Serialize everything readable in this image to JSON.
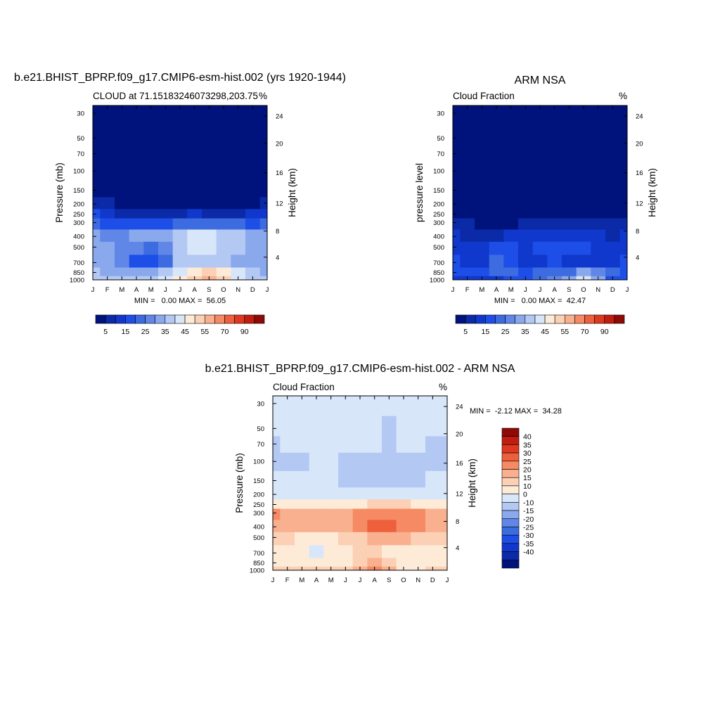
{
  "chart_data": [
    {
      "type": "heatmap",
      "title": "b.e21.BHIST_BPRP.f09_g17.CMIP6-esm-hist.002 (yrs 1920-1944)",
      "subtitle_left": "CLOUD at 71.15183246073298,203.75",
      "subtitle_right": "%",
      "ylabel": "Pressure (mb)",
      "ylabel_right": "Height (km)",
      "x_ticks": [
        "J",
        "F",
        "M",
        "A",
        "M",
        "J",
        "J",
        "A",
        "S",
        "O",
        "N",
        "D",
        "J"
      ],
      "y_ticks": [
        "30",
        "50",
        "70",
        "100",
        "150",
        "200",
        "250",
        "300",
        "400",
        "500",
        "700",
        "850",
        "1000"
      ],
      "y_ticks_right": [
        "24",
        "20",
        "16",
        "12",
        "8",
        "4"
      ],
      "stats": "MIN =   0.00 MAX =  56.05",
      "min": 0.0,
      "max": 56.05,
      "colorbar": {
        "orientation": "horizontal",
        "levels": [
          5,
          10,
          15,
          20,
          25,
          30,
          35,
          40,
          45,
          50,
          55,
          60,
          70,
          80,
          90
        ],
        "labels": [
          "5",
          "15",
          "25",
          "35",
          "45",
          "55",
          "70",
          "90"
        ],
        "colors": [
          "#00137d",
          "#0a2aa8",
          "#1038cc",
          "#1d4ee8",
          "#3c6ce0",
          "#6087e8",
          "#8aa8ec",
          "#b4c8f4",
          "#d8e6fa",
          "#fdebd8",
          "#fcd0b4",
          "#f9b08f",
          "#f58a64",
          "#ee5f3c",
          "#df3820",
          "#c01c10",
          "#8f0a06"
        ]
      },
      "z_grid": {
        "x": [
          "J",
          "F",
          "M",
          "A",
          "M",
          "J",
          "J",
          "A",
          "S",
          "O",
          "N",
          "D",
          "J"
        ],
        "y": [
          30,
          50,
          70,
          100,
          150,
          200,
          250,
          300,
          400,
          500,
          700,
          850,
          1000
        ],
        "z": [
          [
            1,
            1,
            1,
            1,
            1,
            1,
            1,
            1,
            1,
            1,
            1,
            1,
            1
          ],
          [
            1,
            1,
            1,
            1,
            1,
            1,
            1,
            1,
            1,
            1,
            1,
            1,
            1
          ],
          [
            1,
            1,
            1,
            1,
            1,
            1,
            1,
            1,
            1,
            1,
            1,
            1,
            1
          ],
          [
            1,
            1,
            1,
            1,
            1,
            1,
            1,
            1,
            1,
            1,
            1,
            1,
            1
          ],
          [
            2,
            2,
            2,
            2,
            2,
            2,
            2,
            2,
            2,
            2,
            2,
            2,
            2
          ],
          [
            8,
            5,
            3,
            2,
            2,
            3,
            4,
            4,
            3,
            3,
            3,
            4,
            8
          ],
          [
            15,
            12,
            9,
            7,
            6,
            7,
            9,
            10,
            9,
            9,
            9,
            10,
            14
          ],
          [
            20,
            18,
            16,
            15,
            15,
            17,
            20,
            22,
            22,
            21,
            20,
            19,
            21
          ],
          [
            30,
            27,
            27,
            30,
            32,
            34,
            38,
            40,
            40,
            38,
            36,
            34,
            31
          ],
          [
            32,
            30,
            28,
            26,
            24,
            28,
            38,
            40,
            40,
            38,
            36,
            32,
            30
          ],
          [
            32,
            30,
            26,
            18,
            16,
            22,
            36,
            38,
            38,
            36,
            34,
            32,
            30
          ],
          [
            35,
            34,
            32,
            30,
            32,
            36,
            42,
            48,
            50,
            45,
            40,
            36,
            34
          ],
          [
            36,
            36,
            36,
            36,
            36,
            40,
            48,
            52,
            56,
            50,
            42,
            38,
            36
          ]
        ]
      }
    },
    {
      "type": "heatmap",
      "title": "ARM NSA",
      "subtitle_left": "Cloud Fraction",
      "subtitle_right": "%",
      "ylabel": "pressure level",
      "ylabel_right": "Height (km)",
      "x_ticks": [
        "J",
        "F",
        "M",
        "A",
        "M",
        "J",
        "J",
        "A",
        "S",
        "O",
        "N",
        "D",
        "J"
      ],
      "y_ticks": [
        "30",
        "50",
        "70",
        "100",
        "150",
        "200",
        "250",
        "300",
        "400",
        "500",
        "700",
        "850",
        "1000"
      ],
      "y_ticks_right": [
        "24",
        "20",
        "16",
        "12",
        "8",
        "4"
      ],
      "stats": "MIN =   0.00 MAX =  42.47",
      "min": 0.0,
      "max": 42.47,
      "colorbar": {
        "orientation": "horizontal",
        "levels": [
          5,
          10,
          15,
          20,
          25,
          30,
          35,
          40,
          45,
          50,
          55,
          60,
          70,
          80,
          90
        ],
        "labels": [
          "5",
          "15",
          "25",
          "35",
          "45",
          "55",
          "70",
          "90"
        ],
        "colors": [
          "#00137d",
          "#0a2aa8",
          "#1038cc",
          "#1d4ee8",
          "#3c6ce0",
          "#6087e8",
          "#8aa8ec",
          "#b4c8f4",
          "#d8e6fa",
          "#fdebd8",
          "#fcd0b4",
          "#f9b08f",
          "#f58a64",
          "#ee5f3c",
          "#df3820",
          "#c01c10",
          "#8f0a06"
        ]
      },
      "z_grid": {
        "x": [
          "J",
          "F",
          "M",
          "A",
          "M",
          "J",
          "J",
          "A",
          "S",
          "O",
          "N",
          "D",
          "J"
        ],
        "y": [
          30,
          50,
          70,
          100,
          150,
          200,
          250,
          300,
          400,
          500,
          700,
          850,
          1000
        ],
        "z": [
          [
            1,
            1,
            1,
            1,
            1,
            1,
            1,
            1,
            1,
            1,
            1,
            1,
            1
          ],
          [
            1,
            1,
            1,
            1,
            1,
            1,
            1,
            1,
            1,
            1,
            1,
            1,
            1
          ],
          [
            1,
            1,
            1,
            1,
            1,
            1,
            1,
            1,
            1,
            1,
            1,
            1,
            1
          ],
          [
            1,
            1,
            1,
            1,
            1,
            1,
            1,
            1,
            1,
            1,
            1,
            1,
            1
          ],
          [
            1,
            1,
            1,
            1,
            1,
            1,
            1,
            1,
            1,
            1,
            1,
            1,
            1
          ],
          [
            1,
            1,
            1,
            1,
            1,
            1,
            1,
            1,
            1,
            1,
            1,
            1,
            1
          ],
          [
            2,
            2,
            2,
            2,
            2,
            2,
            2,
            2,
            2,
            2,
            2,
            2,
            2
          ],
          [
            6,
            5,
            4,
            4,
            4,
            5,
            6,
            7,
            6,
            5,
            5,
            5,
            6
          ],
          [
            10,
            9,
            8,
            9,
            10,
            10,
            11,
            12,
            11,
            10,
            10,
            9,
            10
          ],
          [
            14,
            12,
            13,
            18,
            16,
            14,
            16,
            17,
            15,
            16,
            14,
            13,
            14
          ],
          [
            16,
            14,
            14,
            20,
            18,
            12,
            14,
            16,
            12,
            14,
            13,
            14,
            15
          ],
          [
            18,
            17,
            17,
            20,
            20,
            18,
            22,
            24,
            22,
            30,
            28,
            20,
            18
          ],
          [
            14,
            14,
            14,
            14,
            15,
            18,
            22,
            26,
            34,
            42,
            30,
            18,
            15
          ]
        ]
      }
    },
    {
      "type": "heatmap",
      "title": "b.e21.BHIST_BPRP.f09_g17.CMIP6-esm-hist.002 - ARM NSA",
      "subtitle_left": "Cloud Fraction",
      "subtitle_right": "%",
      "ylabel": "Pressure (mb)",
      "ylabel_right": "Height (km)",
      "x_ticks": [
        "J",
        "F",
        "M",
        "A",
        "M",
        "J",
        "J",
        "A",
        "S",
        "O",
        "N",
        "D",
        "J"
      ],
      "y_ticks": [
        "30",
        "50",
        "70",
        "100",
        "150",
        "200",
        "250",
        "300",
        "400",
        "500",
        "700",
        "850",
        "1000"
      ],
      "y_ticks_right": [
        "24",
        "20",
        "16",
        "12",
        "8",
        "4"
      ],
      "stats": "MIN =  -2.12 MAX =  34.28",
      "min": -2.12,
      "max": 34.28,
      "colorbar": {
        "orientation": "vertical",
        "levels": [
          -40,
          -35,
          -30,
          -25,
          -20,
          -15,
          -10,
          0,
          10,
          15,
          20,
          25,
          30,
          35,
          40
        ],
        "labels": [
          "40",
          "35",
          "30",
          "25",
          "20",
          "15",
          "10",
          "0",
          "-10",
          "-15",
          "-20",
          "-25",
          "-30",
          "-35",
          "-40"
        ],
        "colors": [
          "#00137d",
          "#0a2aa8",
          "#1038cc",
          "#1d4ee8",
          "#3c6ce0",
          "#6087e8",
          "#8aa8ec",
          "#b4c8f4",
          "#d8e6fa",
          "#fdebd8",
          "#fcd0b4",
          "#f9b08f",
          "#f58a64",
          "#ee5f3c",
          "#df3820",
          "#c01c10",
          "#8f0a06"
        ]
      },
      "z_grid": {
        "x": [
          "J",
          "F",
          "M",
          "A",
          "M",
          "J",
          "J",
          "A",
          "S",
          "O",
          "N",
          "D",
          "J"
        ],
        "y": [
          30,
          50,
          70,
          100,
          150,
          200,
          250,
          300,
          400,
          500,
          700,
          850,
          1000
        ],
        "z": [
          [
            1,
            1,
            1,
            1,
            1,
            1,
            1,
            1,
            1,
            1,
            1,
            1,
            1
          ],
          [
            1,
            1,
            1,
            1,
            1,
            1,
            1,
            1,
            -1,
            1,
            1,
            1,
            1
          ],
          [
            -1,
            1,
            1,
            1,
            1,
            1,
            1,
            1,
            -1,
            1,
            1,
            -1,
            -1
          ],
          [
            -1,
            -1,
            -1,
            1,
            1,
            -1,
            -1,
            -1,
            -1,
            -1,
            -1,
            -1,
            -1
          ],
          [
            1,
            1,
            1,
            1,
            1,
            -1,
            -1,
            -1,
            -1,
            -1,
            -1,
            1,
            1
          ],
          [
            5,
            3,
            2,
            2,
            2,
            3,
            3,
            3,
            2,
            2,
            2,
            3,
            5
          ],
          [
            14,
            12,
            11,
            10,
            10,
            11,
            14,
            16,
            15,
            15,
            14,
            13,
            14
          ],
          [
            25,
            24,
            22,
            22,
            21,
            22,
            26,
            28,
            29,
            28,
            25,
            23,
            24
          ],
          [
            24,
            22,
            20,
            22,
            22,
            24,
            28,
            30,
            32,
            29,
            26,
            24,
            24
          ],
          [
            16,
            15,
            14,
            14,
            13,
            15,
            18,
            20,
            22,
            20,
            18,
            17,
            16
          ],
          [
            14,
            13,
            10,
            8,
            10,
            12,
            16,
            16,
            14,
            13,
            13,
            14,
            14
          ],
          [
            14,
            14,
            13,
            12,
            13,
            14,
            18,
            22,
            18,
            14,
            14,
            14,
            14
          ],
          [
            18,
            18,
            18,
            17,
            16,
            18,
            22,
            26,
            22,
            12,
            12,
            16,
            18
          ]
        ]
      }
    }
  ]
}
